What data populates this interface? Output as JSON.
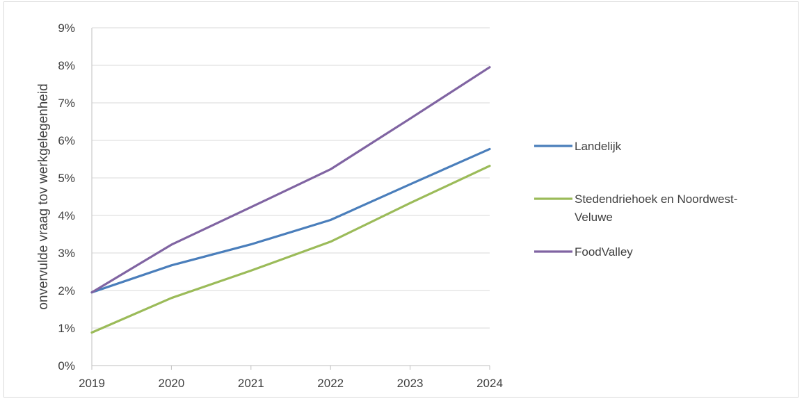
{
  "chart_data": {
    "type": "line",
    "title": "",
    "xlabel": "",
    "ylabel": "onvervulde vraag tov werkgelegenheid",
    "ylim": [
      0,
      9
    ],
    "y_unit": "%",
    "y_ticks": [
      "0%",
      "1%",
      "2%",
      "3%",
      "4%",
      "5%",
      "6%",
      "7%",
      "8%",
      "9%"
    ],
    "categories": [
      "2019",
      "2020",
      "2021",
      "2022",
      "2023",
      "2024"
    ],
    "grid": true,
    "legend_position": "right",
    "series": [
      {
        "name": "Landelijk",
        "color": "#4a7ebb",
        "values": [
          1.95,
          2.67,
          3.23,
          3.88,
          4.83,
          5.77
        ]
      },
      {
        "name": "Stedendriehoek en Noordwest-Veluwe",
        "legend_lines": [
          "Stedendriehoek en Noordwest-",
          "Veluwe"
        ],
        "color": "#9bbb59",
        "values": [
          0.88,
          1.8,
          2.53,
          3.3,
          4.33,
          5.32
        ]
      },
      {
        "name": "FoodValley",
        "color": "#8064a2",
        "values": [
          1.95,
          3.22,
          4.22,
          5.23,
          6.58,
          7.95
        ]
      }
    ]
  }
}
